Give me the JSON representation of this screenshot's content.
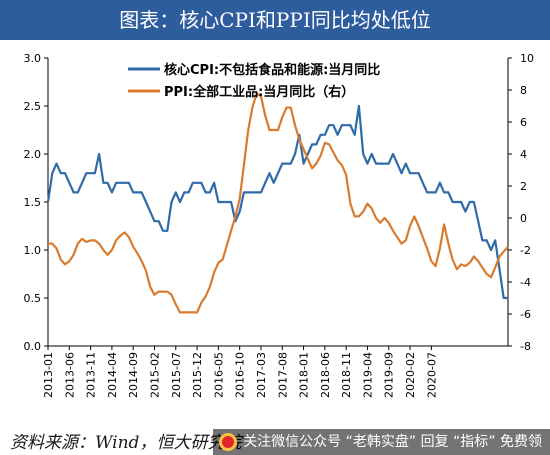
{
  "title": "图表：核心CPI和PPI同比均处低位",
  "source": "资料来源：Wind，恒大研究院",
  "watermark": "关注微信公众号 “老韩实盘” 回复 “指标” 免费领",
  "chart_data": {
    "type": "line",
    "title": "图表：核心CPI和PPI同比均处低位",
    "xlabel": "",
    "ylabel": "",
    "x_tick_labels": [
      "2013-01",
      "2013-06",
      "2013-11",
      "2014-04",
      "2014-09",
      "2015-02",
      "2015-07",
      "2015-12",
      "2016-05",
      "2016-10",
      "2017-03",
      "2017-08",
      "2018-01",
      "2018-06",
      "2018-11",
      "2019-04",
      "2019-09",
      "2020-02",
      "2020-07"
    ],
    "left_axis": {
      "range": [
        0.0,
        3.0
      ],
      "ticks": [
        "0.0",
        "0.5",
        "1.0",
        "1.5",
        "2.0",
        "2.5",
        "3.0"
      ]
    },
    "right_axis": {
      "range": [
        -8,
        10
      ],
      "ticks": [
        "-8",
        "-6",
        "-4",
        "-2",
        "0",
        "2",
        "4",
        "6",
        "8",
        "10"
      ]
    },
    "legend_position": "top-center",
    "grid": false,
    "series": [
      {
        "name": "核心CPI:不包括食品和能源:当月同比",
        "axis": "left",
        "color": "#2e6ba8",
        "values": [
          1.5,
          1.8,
          1.9,
          1.8,
          1.8,
          1.7,
          1.6,
          1.6,
          1.7,
          1.8,
          1.8,
          1.8,
          2.0,
          1.7,
          1.7,
          1.6,
          1.7,
          1.7,
          1.7,
          1.7,
          1.6,
          1.6,
          1.6,
          1.5,
          1.4,
          1.3,
          1.3,
          1.2,
          1.2,
          1.5,
          1.6,
          1.5,
          1.6,
          1.6,
          1.7,
          1.7,
          1.7,
          1.6,
          1.6,
          1.7,
          1.5,
          1.5,
          1.5,
          1.5,
          1.3,
          1.4,
          1.6,
          1.6,
          1.6,
          1.6,
          1.6,
          1.7,
          1.8,
          1.7,
          1.8,
          1.9,
          1.9,
          1.9,
          2.0,
          2.2,
          1.9,
          2.0,
          2.1,
          2.1,
          2.2,
          2.2,
          2.3,
          2.3,
          2.2,
          2.3,
          2.3,
          2.3,
          2.2,
          2.5,
          2.0,
          1.9,
          2.0,
          1.9,
          1.9,
          1.9,
          1.9,
          2.0,
          1.9,
          1.8,
          1.9,
          1.8,
          1.8,
          1.8,
          1.7,
          1.6,
          1.6,
          1.6,
          1.7,
          1.6,
          1.6,
          1.5,
          1.5,
          1.5,
          1.4,
          1.5,
          1.5,
          1.3,
          1.1,
          1.1,
          1.0,
          1.1,
          0.8,
          0.5,
          0.5
        ]
      },
      {
        "name": "PPI:全部工业品:当月同比（右）",
        "axis": "right",
        "color": "#d97b2e",
        "values": [
          -1.6,
          -1.6,
          -1.9,
          -2.6,
          -2.9,
          -2.7,
          -2.3,
          -1.6,
          -1.3,
          -1.5,
          -1.4,
          -1.4,
          -1.6,
          -2.0,
          -2.3,
          -2.0,
          -1.4,
          -1.1,
          -0.9,
          -1.2,
          -1.8,
          -2.2,
          -2.7,
          -3.3,
          -4.3,
          -4.8,
          -4.6,
          -4.6,
          -4.6,
          -4.8,
          -5.4,
          -5.9,
          -5.9,
          -5.9,
          -5.9,
          -5.9,
          -5.3,
          -4.9,
          -4.3,
          -3.4,
          -2.8,
          -2.6,
          -1.7,
          -0.8,
          0.1,
          1.2,
          3.3,
          5.5,
          6.9,
          7.8,
          7.6,
          6.4,
          5.5,
          5.5,
          5.5,
          6.3,
          6.9,
          6.9,
          5.8,
          4.9,
          4.3,
          3.7,
          3.1,
          3.4,
          3.9,
          4.7,
          4.6,
          4.1,
          3.6,
          3.3,
          2.7,
          0.9,
          0.1,
          0.1,
          0.4,
          0.9,
          0.6,
          0.0,
          -0.3,
          0.0,
          -0.3,
          -0.8,
          -1.2,
          -1.6,
          -1.4,
          -0.5,
          0.1,
          -0.5,
          -1.2,
          -1.9,
          -2.7,
          -3.0,
          -1.9,
          -0.4,
          -1.6,
          -2.6,
          -3.2,
          -2.9,
          -3.0,
          -2.8,
          -2.4,
          -2.7,
          -3.1,
          -3.5,
          -3.7,
          -3.1,
          -2.4,
          -2.1,
          -1.8
        ]
      }
    ]
  }
}
